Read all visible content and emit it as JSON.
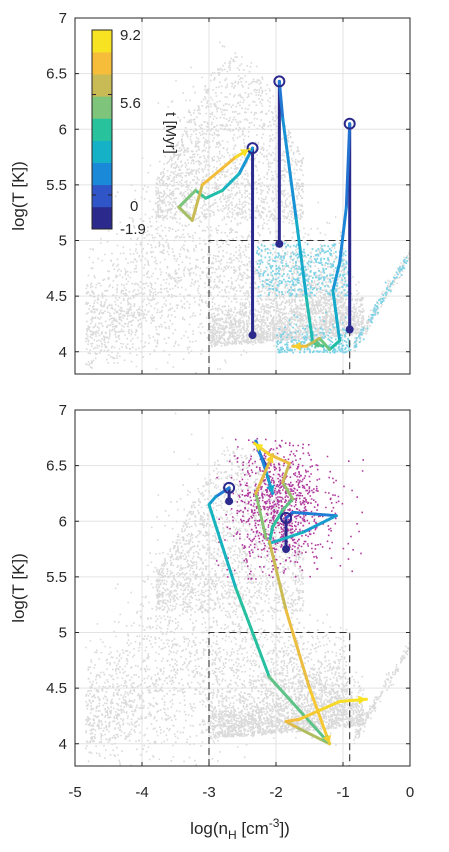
{
  "chart_data": [
    {
      "type": "scatter",
      "panel": "top",
      "ylabel": "log(T [K])",
      "xlim": [
        -5,
        0
      ],
      "ylim": [
        3.8,
        7
      ],
      "yticks": [
        "4",
        "4.5",
        "5",
        "5.5",
        "6",
        "6.5",
        "7"
      ],
      "grid": true,
      "colorbar": {
        "label": "t [Myr]",
        "min": -1.9,
        "max": 9.2,
        "tick_labels": [
          "9.2",
          "5.6",
          "0",
          "-1.9"
        ],
        "tick_values": [
          9.2,
          5.6,
          0,
          -1.9
        ],
        "colors": [
          "#2b2a8c",
          "#2f55c8",
          "#1a8ad8",
          "#14b1c7",
          "#28c29c",
          "#7ec47a",
          "#c8bb55",
          "#f5bd3a",
          "#f7e322"
        ],
        "placement": "top-left"
      },
      "cutoff_box": {
        "x": [
          -3,
          -0.9
        ],
        "y": [
          3.8,
          5
        ]
      },
      "tracks": [
        {
          "points": [
            [
              -2.35,
              4.15
            ],
            [
              -2.35,
              5.83
            ]
          ],
          "t": [
            -1.9,
            -1.9
          ],
          "start_marker": [
            -2.35,
            5.83
          ],
          "end_dot": [
            -2.35,
            4.15
          ]
        },
        {
          "points": [
            [
              -2.35,
              5.83
            ],
            [
              -2.55,
              5.6
            ],
            [
              -2.8,
              5.45
            ],
            [
              -3.05,
              5.38
            ],
            [
              -3.2,
              5.45
            ],
            [
              -3.45,
              5.3
            ],
            [
              -3.25,
              5.18
            ],
            [
              -3.1,
              5.5
            ],
            [
              -2.6,
              5.75
            ],
            [
              -2.4,
              5.82
            ]
          ],
          "t": [
            0.5,
            2,
            3,
            3.5,
            4.5,
            5.5,
            6,
            7,
            8.5,
            9.2
          ]
        },
        {
          "points": [
            [
              -1.95,
              4.97
            ],
            [
              -1.95,
              6.43
            ]
          ],
          "t": [
            -1.9,
            -1.9
          ],
          "start_marker": [
            -1.95,
            6.43
          ],
          "end_dot": [
            -1.95,
            4.97
          ]
        },
        {
          "points": [
            [
              -1.95,
              6.43
            ],
            [
              -1.9,
              6.1
            ],
            [
              -1.7,
              5.2
            ],
            [
              -1.55,
              4.5
            ],
            [
              -1.45,
              4.08
            ],
            [
              -1.3,
              4.05
            ]
          ],
          "t": [
            0,
            0.8,
            1.5,
            2.5,
            3.5,
            4.5
          ]
        },
        {
          "points": [
            [
              -0.9,
              4.2
            ],
            [
              -0.9,
              6.05
            ]
          ],
          "t": [
            -1.9,
            -1.9
          ],
          "start_marker": [
            -0.9,
            6.05
          ],
          "end_dot": [
            -0.9,
            4.2
          ]
        },
        {
          "points": [
            [
              -0.9,
              6.05
            ],
            [
              -0.95,
              5.3
            ],
            [
              -1.05,
              4.8
            ],
            [
              -1.15,
              4.55
            ],
            [
              -1.05,
              4.1
            ],
            [
              -1.2,
              4.02
            ],
            [
              -1.35,
              4.12
            ],
            [
              -1.55,
              4.05
            ],
            [
              -1.75,
              4.05
            ]
          ],
          "t": [
            0,
            0.5,
            1,
            1.5,
            2.5,
            4,
            5.5,
            7,
            8.5
          ]
        }
      ]
    },
    {
      "type": "scatter",
      "panel": "bottom",
      "ylabel": "log(T [K])",
      "xlabel": "log(n",
      "xlabel_sub": "H",
      "xlabel_unit": " [cm",
      "xlabel_sup": "-3",
      "xlabel_end": "])",
      "xlim": [
        -5,
        0
      ],
      "ylim": [
        3.8,
        7
      ],
      "xticks": [
        "-5",
        "-4",
        "-3",
        "-2",
        "-1",
        "0"
      ],
      "yticks": [
        "4",
        "4.5",
        "5",
        "5.5",
        "6",
        "6.5",
        "7"
      ],
      "grid": true,
      "cutoff_box": {
        "x": [
          -3,
          -0.9
        ],
        "y": [
          3.8,
          5
        ]
      },
      "tracks": [
        {
          "points": [
            [
              -2.7,
              6.18
            ],
            [
              -2.7,
              6.3
            ]
          ],
          "t": [
            -1.9,
            -1.9
          ],
          "start_marker": [
            -2.7,
            6.3
          ],
          "end_dot": [
            -2.7,
            6.18
          ]
        },
        {
          "points": [
            [
              -2.7,
              6.3
            ],
            [
              -2.9,
              6.22
            ],
            [
              -3.0,
              6.15
            ],
            [
              -2.6,
              5.4
            ],
            [
              -2.1,
              4.6
            ],
            [
              -1.2,
              4.0
            ]
          ],
          "t": [
            0,
            1,
            2,
            3,
            4,
            5
          ]
        },
        {
          "points": [
            [
              -1.2,
              4.0
            ],
            [
              -1.7,
              4.15
            ],
            [
              -1.85,
              4.2
            ],
            [
              -1.65,
              4.22
            ],
            [
              -1.35,
              4.3
            ],
            [
              -1.05,
              4.38
            ],
            [
              -0.65,
              4.4
            ]
          ],
          "t": [
            5.5,
            6.5,
            7.5,
            8,
            8.5,
            9,
            9.2
          ]
        },
        {
          "points": [
            [
              -2.15,
              6.5
            ],
            [
              -2.25,
              6.62
            ],
            [
              -2.3,
              6.72
            ],
            [
              -2.15,
              6.45
            ],
            [
              -2.05,
              6.25
            ]
          ],
          "t": [
            -1.9,
            -0.5,
            0.5,
            1,
            2
          ]
        },
        {
          "points": [
            [
              -1.85,
              5.75
            ],
            [
              -1.85,
              6.03
            ]
          ],
          "t": [
            -1.9,
            -1.9
          ],
          "start_marker": [
            -1.85,
            6.03
          ],
          "end_dot": [
            -1.85,
            5.75
          ]
        },
        {
          "points": [
            [
              -1.85,
              6.03
            ],
            [
              -1.75,
              6.08
            ],
            [
              -1.1,
              6.05
            ],
            [
              -1.6,
              5.9
            ],
            [
              -2.1,
              5.8
            ],
            [
              -2.05,
              5.95
            ],
            [
              -1.9,
              6.1
            ],
            [
              -1.75,
              6.2
            ],
            [
              -1.9,
              6.35
            ],
            [
              -1.8,
              6.52
            ],
            [
              -2.1,
              6.6
            ],
            [
              -2.32,
              6.7
            ]
          ],
          "t": [
            -1,
            0,
            1,
            2,
            3,
            3.5,
            4,
            5,
            6,
            7,
            8,
            9.2
          ]
        },
        {
          "points": [
            [
              -2.15,
              5.85
            ],
            [
              -2.3,
              6.25
            ],
            [
              -2.05,
              6.6
            ]
          ],
          "t": [
            4.5,
            6,
            8.5
          ]
        },
        {
          "points": [
            [
              -2.1,
              5.82
            ],
            [
              -1.85,
              5.2
            ],
            [
              -1.5,
              4.5
            ],
            [
              -1.2,
              4.0
            ]
          ],
          "t": [
            6,
            7,
            8,
            8.5
          ]
        }
      ]
    }
  ]
}
